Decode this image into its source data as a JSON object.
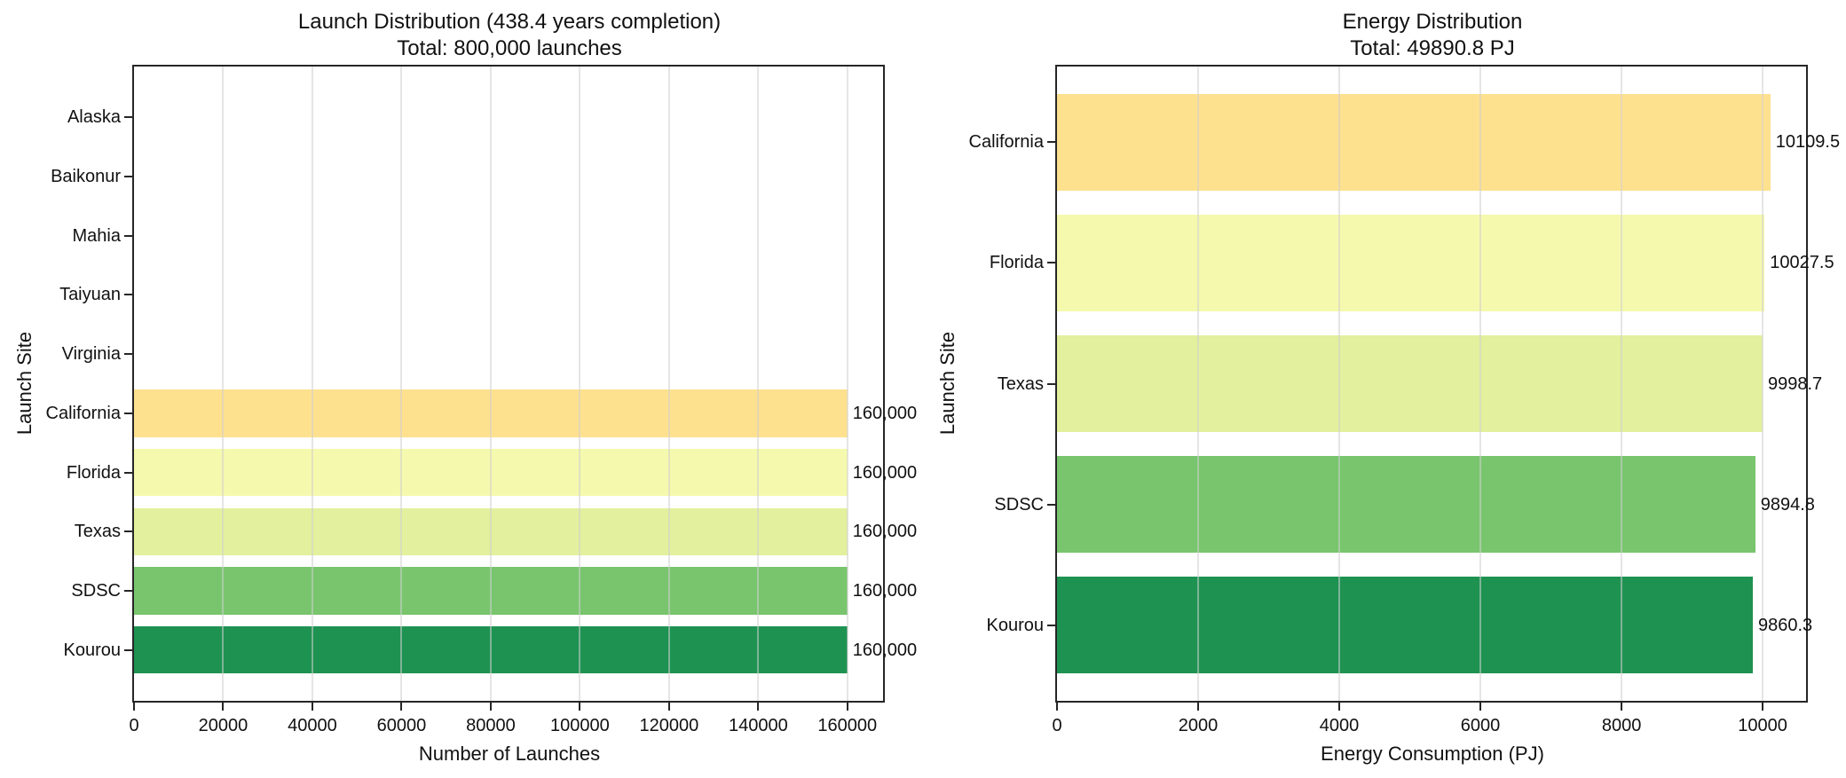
{
  "figure": {
    "background": "#ffffff",
    "text_color": "#111111",
    "spine_color": "#262626",
    "grid_color": "#d0d0d0"
  },
  "chart_data": [
    {
      "type": "bar",
      "orientation": "horizontal",
      "title": "Launch Distribution (438.4 years completion)",
      "subtitle": "Total: 800,000 launches",
      "xlabel": "Number of Launches",
      "ylabel": "Launch Site",
      "categories": [
        "Alaska",
        "Baikonur",
        "Mahia",
        "Taiyuan",
        "Virginia",
        "California",
        "Florida",
        "Texas",
        "SDSC",
        "Kourou"
      ],
      "values": [
        0,
        0,
        0,
        0,
        0,
        160000,
        160000,
        160000,
        160000,
        160000
      ],
      "bar_labels": [
        "",
        "",
        "",
        "",
        "",
        "160,000",
        "160,000",
        "160,000",
        "160,000",
        "160,000"
      ],
      "bar_colors": [
        "",
        "",
        "",
        "",
        "",
        "#fee18f",
        "#f5f9ae",
        "#e3f09d",
        "#78c56d",
        "#1e9251"
      ],
      "xlim": [
        0,
        168000
      ],
      "xticks": [
        0,
        20000,
        40000,
        60000,
        80000,
        100000,
        120000,
        140000,
        160000
      ],
      "xtick_labels": [
        "0",
        "20000",
        "40000",
        "60000",
        "80000",
        "100000",
        "120000",
        "140000",
        "160000"
      ],
      "bar_height_fraction": 0.8,
      "grid": "vertical",
      "legend": null
    },
    {
      "type": "bar",
      "orientation": "horizontal",
      "title": "Energy Distribution",
      "subtitle": "Total: 49890.8 PJ",
      "xlabel": "Energy Consumption (PJ)",
      "ylabel": "Launch Site",
      "categories": [
        "California",
        "Florida",
        "Texas",
        "SDSC",
        "Kourou"
      ],
      "values": [
        10109.5,
        10027.5,
        9998.7,
        9894.8,
        9860.3
      ],
      "bar_labels": [
        "10109.5",
        "10027.5",
        "9998.7",
        "9894.8",
        "9860.3"
      ],
      "bar_colors": [
        "#fee18f",
        "#f5f9ae",
        "#e3f09d",
        "#78c56d",
        "#1e9251"
      ],
      "xlim": [
        0,
        10615
      ],
      "xticks": [
        0,
        2000,
        4000,
        6000,
        8000,
        10000
      ],
      "xtick_labels": [
        "0",
        "2000",
        "4000",
        "6000",
        "8000",
        "10000"
      ],
      "bar_height_fraction": 0.8,
      "grid": "vertical",
      "legend": null
    }
  ]
}
